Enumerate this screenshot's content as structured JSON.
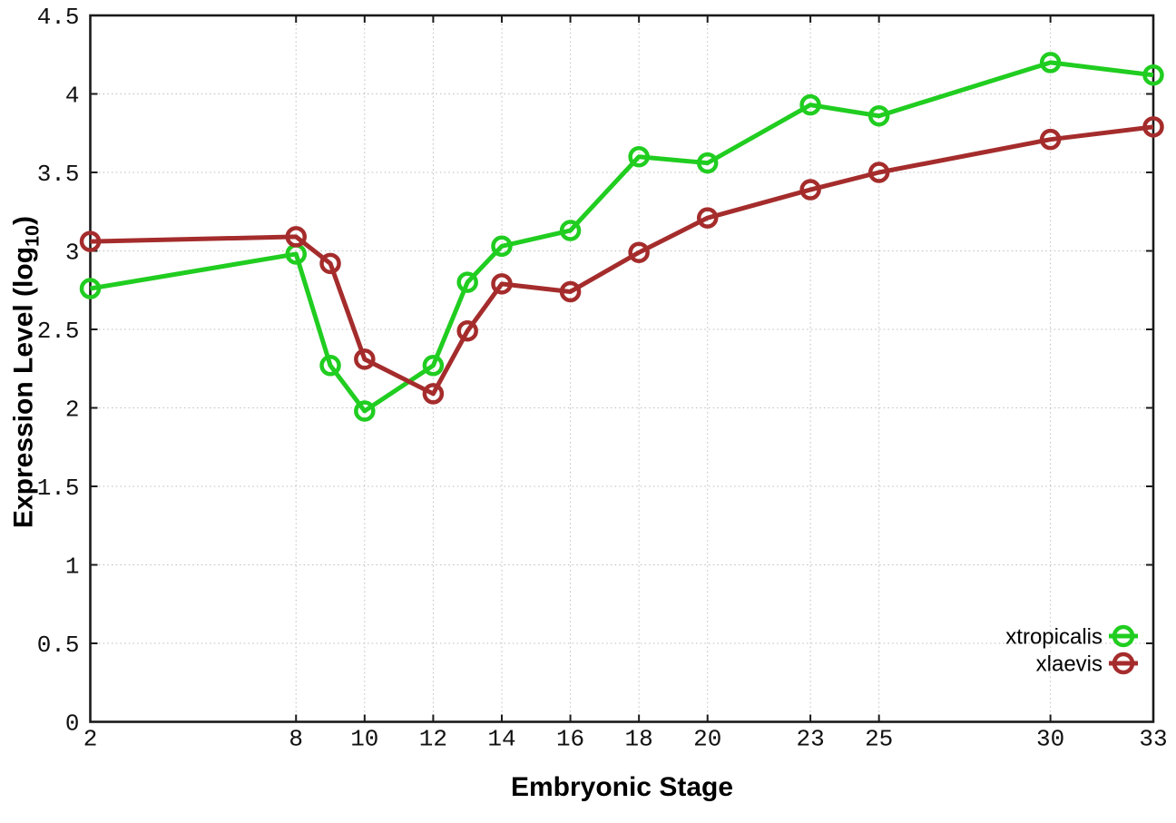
{
  "chart_data": {
    "type": "line",
    "title": "",
    "xlabel": "Embryonic Stage",
    "ylabel": "Expression Level (log10)",
    "ylabel_parts": {
      "main": "Expression Level (log",
      "sub": "10",
      "close": ")"
    },
    "x": [
      2,
      8,
      9,
      10,
      12,
      13,
      14,
      16,
      18,
      20,
      23,
      25,
      30,
      33
    ],
    "series": [
      {
        "name": "xtropicalis",
        "color": "#20cd20",
        "values": [
          2.76,
          2.98,
          2.27,
          1.98,
          2.27,
          2.8,
          3.03,
          3.13,
          3.6,
          3.56,
          3.93,
          3.86,
          4.2,
          4.12
        ]
      },
      {
        "name": "xlaevis",
        "color": "#a52c2c",
        "values": [
          3.06,
          3.09,
          2.92,
          2.31,
          2.09,
          2.49,
          2.79,
          2.74,
          2.99,
          3.21,
          3.39,
          3.5,
          3.71,
          3.79
        ]
      }
    ],
    "xticks": [
      2,
      8,
      10,
      12,
      14,
      16,
      18,
      20,
      23,
      25,
      30,
      33
    ],
    "xtick_labels": [
      "2",
      "8",
      "10",
      "12",
      "14",
      "16",
      "18",
      "20",
      "23",
      "25",
      "30",
      "33"
    ],
    "yticks": [
      0,
      0.5,
      1,
      1.5,
      2,
      2.5,
      3,
      3.5,
      4,
      4.5
    ],
    "ytick_labels": [
      "0",
      "0.5",
      "1",
      "1.5",
      "2",
      "2.5",
      "3",
      "3.5",
      "4",
      "4.5"
    ],
    "xlim": [
      2,
      33
    ],
    "ylim": [
      0,
      4.5
    ],
    "grid": true,
    "legend_position": "inside-bottom-right",
    "legend_entries": [
      "xtropicalis",
      "xlaevis"
    ],
    "colors": {
      "background": "#ffffff",
      "grid": "#bdbdbd",
      "border": "#1a1a1a",
      "tick_text": "#111111",
      "xtropicalis": "#20cd20",
      "xlaevis": "#a52c2c"
    }
  }
}
